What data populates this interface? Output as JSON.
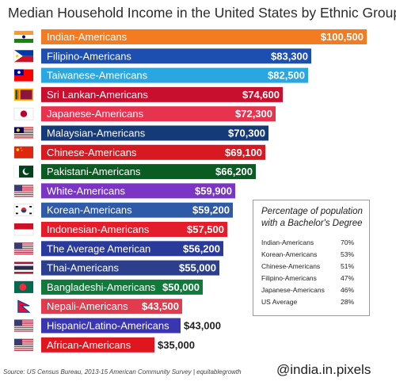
{
  "title": "Median Household Income in the United States  by Ethnic Group",
  "chart_data": {
    "type": "bar",
    "orientation": "horizontal",
    "categories": [
      "Indian-Americans",
      "Filipino-Americans",
      "Taiwanese-Americans",
      "Sri Lankan-Americans",
      "Japanese-Americans",
      "Malaysian-Americans",
      "Chinese-Americans",
      "Pakistani-Americans",
      "White-Americans",
      "Korean-Americans",
      "Indonesian-Americans",
      "The Average American",
      "Thai-Americans",
      "Bangladeshi-Americans",
      "Nepali-Americans",
      "Hispanic/Latino-Americans",
      "African-Americans"
    ],
    "values": [
      100500,
      83300,
      82500,
      74600,
      72300,
      70300,
      69100,
      66200,
      59900,
      59200,
      57500,
      56200,
      55000,
      50000,
      43500,
      43000,
      35000
    ],
    "value_labels": [
      "$100,500",
      "$83,300",
      "$82,500",
      "$74,600",
      "$72,300",
      "$70,300",
      "$69,100",
      "$66,200",
      "$59,900",
      "$59,200",
      "$57,500",
      "$56,200",
      "$55,000",
      "$50,000",
      "$43,500",
      "$43,000",
      "$35,000"
    ],
    "colors": [
      "#f47b20",
      "#1d4fb0",
      "#2aa6e0",
      "#c8102e",
      "#e8334f",
      "#153a78",
      "#d71921",
      "#0a5c23",
      "#7a35c4",
      "#2f5aa8",
      "#e31e2a",
      "#2a3a9a",
      "#2b3f8c",
      "#0f7a3a",
      "#e23b4e",
      "#3a35b0",
      "#e0161f"
    ],
    "value_label_colors": [
      "#ffffff",
      "#ffffff",
      "#ffffff",
      "#ffffff",
      "#ffffff",
      "#ffffff",
      "#ffffff",
      "#ffffff",
      "#ffffff",
      "#ffffff",
      "#ffffff",
      "#ffffff",
      "#ffffff",
      "#ffffff",
      "#ffffff",
      "#222222",
      "#222222"
    ],
    "flags": [
      "india-flag",
      "philippines-flag",
      "taiwan-flag",
      "sri-lanka-flag",
      "japan-flag",
      "malaysia-flag",
      "china-flag",
      "pakistan-flag",
      "usa-flag",
      "south-korea-flag",
      "indonesia-flag",
      "usa-flag",
      "thailand-flag",
      "bangladesh-flag",
      "nepal-flag",
      "usa-flag",
      "usa-flag"
    ]
  },
  "education_box": {
    "title": "Percentage of population with a Bachelor's Degree",
    "rows": [
      {
        "group": "Indian-Americans",
        "pct": "70%"
      },
      {
        "group": "Korean-Americans",
        "pct": "53%"
      },
      {
        "group": "Chinese-Americans",
        "pct": "51%"
      },
      {
        "group": "Filipino-Americans",
        "pct": "47%"
      },
      {
        "group": "Japanese-Americans",
        "pct": "46%"
      },
      {
        "group": "US Average",
        "pct": "28%"
      }
    ]
  },
  "source": "Source: US Census Bureau, 2013-15 American Community Survey | equitablegrowth",
  "watermark": "@india.in.pixels"
}
